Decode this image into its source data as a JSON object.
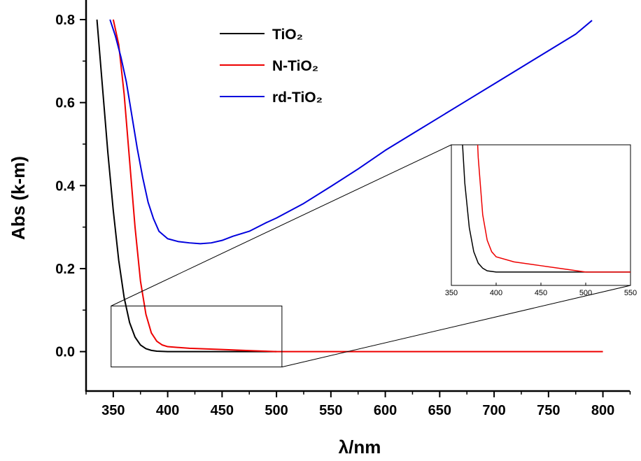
{
  "chart_data": {
    "type": "line",
    "xlabel": "λ/nm",
    "ylabel": "Abs (k-m)",
    "xlim": [
      325,
      835
    ],
    "ylim": [
      -0.095,
      0.8
    ],
    "x_ticks": [
      "350",
      "400",
      "450",
      "500",
      "550",
      "600",
      "650",
      "700",
      "750",
      "800"
    ],
    "y_ticks": [
      "0.0",
      "0.2",
      "0.4",
      "0.6",
      "0.8"
    ],
    "legend_position": "top-center",
    "series": [
      {
        "name": "TiO₂",
        "color": "#000000",
        "points": [
          [
            335,
            0.8
          ],
          [
            340,
            0.64
          ],
          [
            345,
            0.48
          ],
          [
            350,
            0.34
          ],
          [
            355,
            0.22
          ],
          [
            360,
            0.13
          ],
          [
            365,
            0.07
          ],
          [
            370,
            0.035
          ],
          [
            375,
            0.016
          ],
          [
            380,
            0.007
          ],
          [
            385,
            0.003
          ],
          [
            390,
            0.001
          ],
          [
            400,
            0.0
          ],
          [
            450,
            0.0
          ],
          [
            500,
            0.0
          ]
        ]
      },
      {
        "name": "N-TiO₂",
        "color": "#ee0000",
        "points": [
          [
            350,
            0.8
          ],
          [
            355,
            0.74
          ],
          [
            360,
            0.62
          ],
          [
            365,
            0.46
          ],
          [
            370,
            0.3
          ],
          [
            375,
            0.17
          ],
          [
            380,
            0.09
          ],
          [
            385,
            0.045
          ],
          [
            390,
            0.025
          ],
          [
            395,
            0.016
          ],
          [
            400,
            0.012
          ],
          [
            420,
            0.008
          ],
          [
            450,
            0.005
          ],
          [
            480,
            0.002
          ],
          [
            500,
            0.0
          ],
          [
            550,
            0.0
          ],
          [
            600,
            0.0
          ],
          [
            700,
            0.0
          ],
          [
            800,
            0.0
          ]
        ]
      },
      {
        "name": "rd-TiO₂",
        "color": "#0000dd",
        "points": [
          [
            347,
            0.8
          ],
          [
            352,
            0.76
          ],
          [
            357,
            0.71
          ],
          [
            362,
            0.65
          ],
          [
            367,
            0.57
          ],
          [
            372,
            0.49
          ],
          [
            377,
            0.42
          ],
          [
            382,
            0.36
          ],
          [
            387,
            0.32
          ],
          [
            392,
            0.29
          ],
          [
            400,
            0.272
          ],
          [
            410,
            0.265
          ],
          [
            420,
            0.262
          ],
          [
            430,
            0.26
          ],
          [
            440,
            0.262
          ],
          [
            450,
            0.268
          ],
          [
            460,
            0.278
          ],
          [
            475,
            0.29
          ],
          [
            490,
            0.31
          ],
          [
            500,
            0.322
          ],
          [
            525,
            0.357
          ],
          [
            550,
            0.398
          ],
          [
            575,
            0.44
          ],
          [
            600,
            0.485
          ],
          [
            625,
            0.525
          ],
          [
            650,
            0.565
          ],
          [
            675,
            0.605
          ],
          [
            700,
            0.645
          ],
          [
            725,
            0.685
          ],
          [
            750,
            0.725
          ],
          [
            775,
            0.765
          ],
          [
            790,
            0.798
          ]
        ]
      }
    ],
    "inset": {
      "xlim": [
        350,
        550
      ],
      "x_ticks": [
        "350",
        "400",
        "450",
        "500",
        "550"
      ],
      "zoom_box_x": [
        348,
        505
      ],
      "zoom_box_y": [
        -0.037,
        0.11
      ]
    }
  }
}
